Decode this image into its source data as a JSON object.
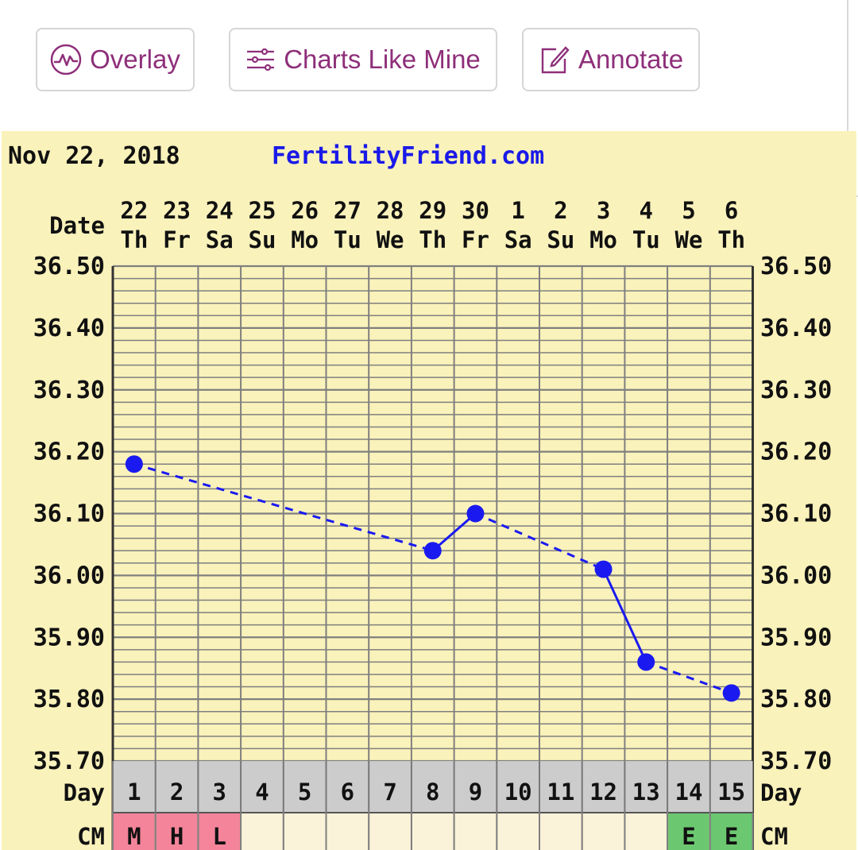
{
  "toolbar": {
    "overlay_label": "Overlay",
    "charts_like_mine_label": "Charts Like Mine",
    "annotate_label": "Annotate",
    "overlay_icon": "wave-circle-icon",
    "charts_like_mine_icon": "sliders-icon",
    "annotate_icon": "edit-note-icon",
    "accent_color": "#8e2f7a"
  },
  "chart_data": {
    "type": "line",
    "header_date": "Nov 22, 2018",
    "site": "FertilityFriend.com",
    "date_row_label": "Date",
    "day_row_label": "Day",
    "cm_row_label": "CM",
    "dates": [
      "22",
      "23",
      "24",
      "25",
      "26",
      "27",
      "28",
      "29",
      "30",
      "1",
      "2",
      "3",
      "4",
      "5",
      "6"
    ],
    "weekdays": [
      "Th",
      "Fr",
      "Sa",
      "Su",
      "Mo",
      "Tu",
      "We",
      "Th",
      "Fr",
      "Sa",
      "Su",
      "Mo",
      "Tu",
      "We",
      "Th"
    ],
    "days": [
      "1",
      "2",
      "3",
      "4",
      "5",
      "6",
      "7",
      "8",
      "9",
      "10",
      "11",
      "12",
      "13",
      "14",
      "15"
    ],
    "cm": [
      "M",
      "H",
      "L",
      "",
      "",
      "",
      "",
      "",
      "",
      "",
      "",
      "",
      "",
      "E",
      "E"
    ],
    "cm_colors": {
      "M": "#f4849a",
      "H": "#f4849a",
      "L": "#f4849a",
      "E": "#6cc870",
      "": "#fbf3d9"
    },
    "y_ticks": [
      "36.50",
      "36.40",
      "36.30",
      "36.20",
      "36.10",
      "36.00",
      "35.90",
      "35.80",
      "35.70"
    ],
    "ylim": [
      35.7,
      36.5
    ],
    "series": [
      {
        "x": [
          1,
          9,
          12,
          13,
          15
        ],
        "y": [
          36.18,
          36.1,
          36.01,
          35.86,
          35.81
        ]
      }
    ],
    "solid_segments": [
      [
        8,
        9
      ],
      [
        12,
        13
      ]
    ],
    "extra_points": [
      {
        "x": 8,
        "y": 36.04
      }
    ],
    "colors": {
      "background": "#faf2bb",
      "grid": "#7f7f7f",
      "line": "#1a1af0",
      "site_text": "#1a1ae8",
      "day_row": "#cccccc"
    },
    "grid": true
  }
}
